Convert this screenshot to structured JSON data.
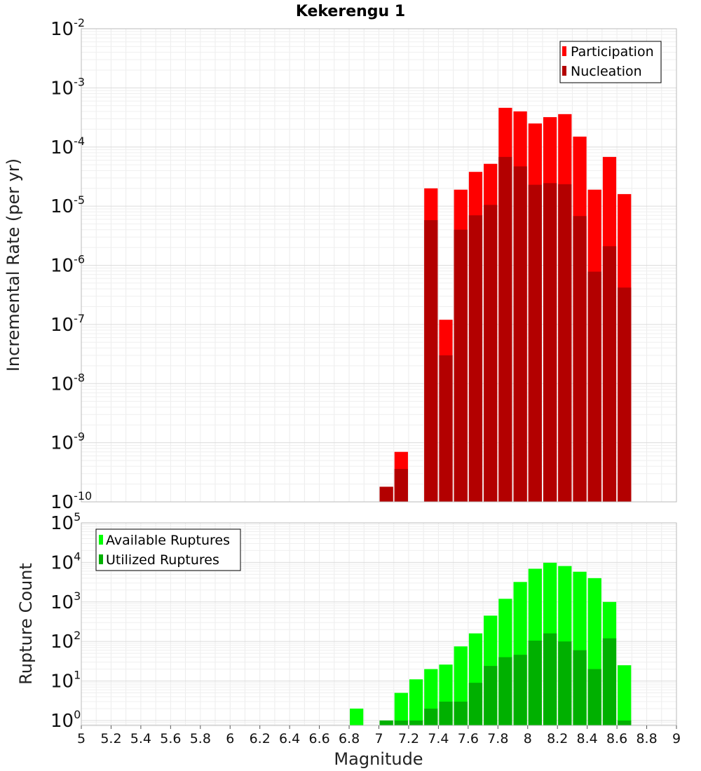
{
  "chart_data": [
    {
      "type": "bar",
      "title": "Kekerengu 1",
      "xlabel": "",
      "ylabel": "Incremental Rate (per yr)",
      "yscale": "log",
      "ylim": [
        1e-10,
        0.01
      ],
      "xlim": [
        5,
        9
      ],
      "bar_width": 0.1,
      "grid": true,
      "legend_position": "top-right",
      "y_ticks": [
        "10^-2",
        "10^-3",
        "10^-4",
        "10^-5",
        "10^-6",
        "10^-7",
        "10^-8",
        "10^-9",
        "10^-10"
      ],
      "series": [
        {
          "name": "Participation",
          "color": "#ff0000",
          "x": [
            7.05,
            7.15,
            7.35,
            7.45,
            7.55,
            7.65,
            7.75,
            7.85,
            7.95,
            8.05,
            8.15,
            8.25,
            8.35,
            8.45,
            8.55,
            8.65
          ],
          "values": [
            1.8e-10,
            7e-10,
            2e-05,
            1.2e-07,
            1.9e-05,
            3.8e-05,
            5.2e-05,
            0.00046,
            0.0004,
            0.00025,
            0.00032,
            0.00036,
            0.00015,
            1.9e-05,
            6.8e-05,
            1.6e-05
          ]
        },
        {
          "name": "Nucleation",
          "color": "#b30000",
          "x": [
            7.05,
            7.15,
            7.35,
            7.45,
            7.55,
            7.65,
            7.75,
            7.85,
            7.95,
            8.05,
            8.15,
            8.25,
            8.35,
            8.45,
            8.55,
            8.65
          ],
          "values": [
            1.8e-10,
            3.6e-10,
            5.8e-06,
            3e-08,
            4e-06,
            7e-06,
            1.05e-05,
            6.8e-05,
            4.7e-05,
            2.3e-05,
            2.45e-05,
            2.35e-05,
            6.8e-06,
            7.8e-07,
            2.1e-06,
            4.2e-07
          ]
        }
      ]
    },
    {
      "type": "bar",
      "title": "",
      "xlabel": "Magnitude",
      "ylabel": "Rupture Count",
      "yscale": "log",
      "ylim": [
        0.75,
        100000
      ],
      "xlim": [
        5,
        9
      ],
      "bar_width": 0.1,
      "grid": true,
      "legend_position": "top-left",
      "x_ticks": [
        "5",
        "5.2",
        "5.4",
        "5.6",
        "5.8",
        "6",
        "6.2",
        "6.4",
        "6.6",
        "6.8",
        "7",
        "7.2",
        "7.4",
        "7.6",
        "7.8",
        "8",
        "8.2",
        "8.4",
        "8.6",
        "8.8",
        "9"
      ],
      "y_ticks": [
        "10^5",
        "10^4",
        "10^3",
        "10^2",
        "10^1",
        "10^0"
      ],
      "series": [
        {
          "name": "Available Ruptures",
          "color": "#00ff00",
          "x": [
            6.85,
            7.05,
            7.15,
            7.25,
            7.35,
            7.45,
            7.55,
            7.65,
            7.75,
            7.85,
            7.95,
            8.05,
            8.15,
            8.25,
            8.35,
            8.45,
            8.55,
            8.65
          ],
          "values": [
            2,
            1,
            5,
            11,
            20,
            26,
            75,
            160,
            450,
            1200,
            3200,
            6900,
            9800,
            8100,
            5800,
            4000,
            1000,
            25
          ]
        },
        {
          "name": "Utilized Ruptures",
          "color": "#00b000",
          "x": [
            7.05,
            7.15,
            7.25,
            7.35,
            7.45,
            7.55,
            7.65,
            7.75,
            7.85,
            7.95,
            8.05,
            8.15,
            8.25,
            8.35,
            8.45,
            8.55,
            8.65
          ],
          "values": [
            1,
            1,
            1,
            2,
            3,
            3,
            9,
            24,
            40,
            46,
            105,
            160,
            100,
            60,
            20,
            120,
            1
          ]
        }
      ]
    }
  ]
}
